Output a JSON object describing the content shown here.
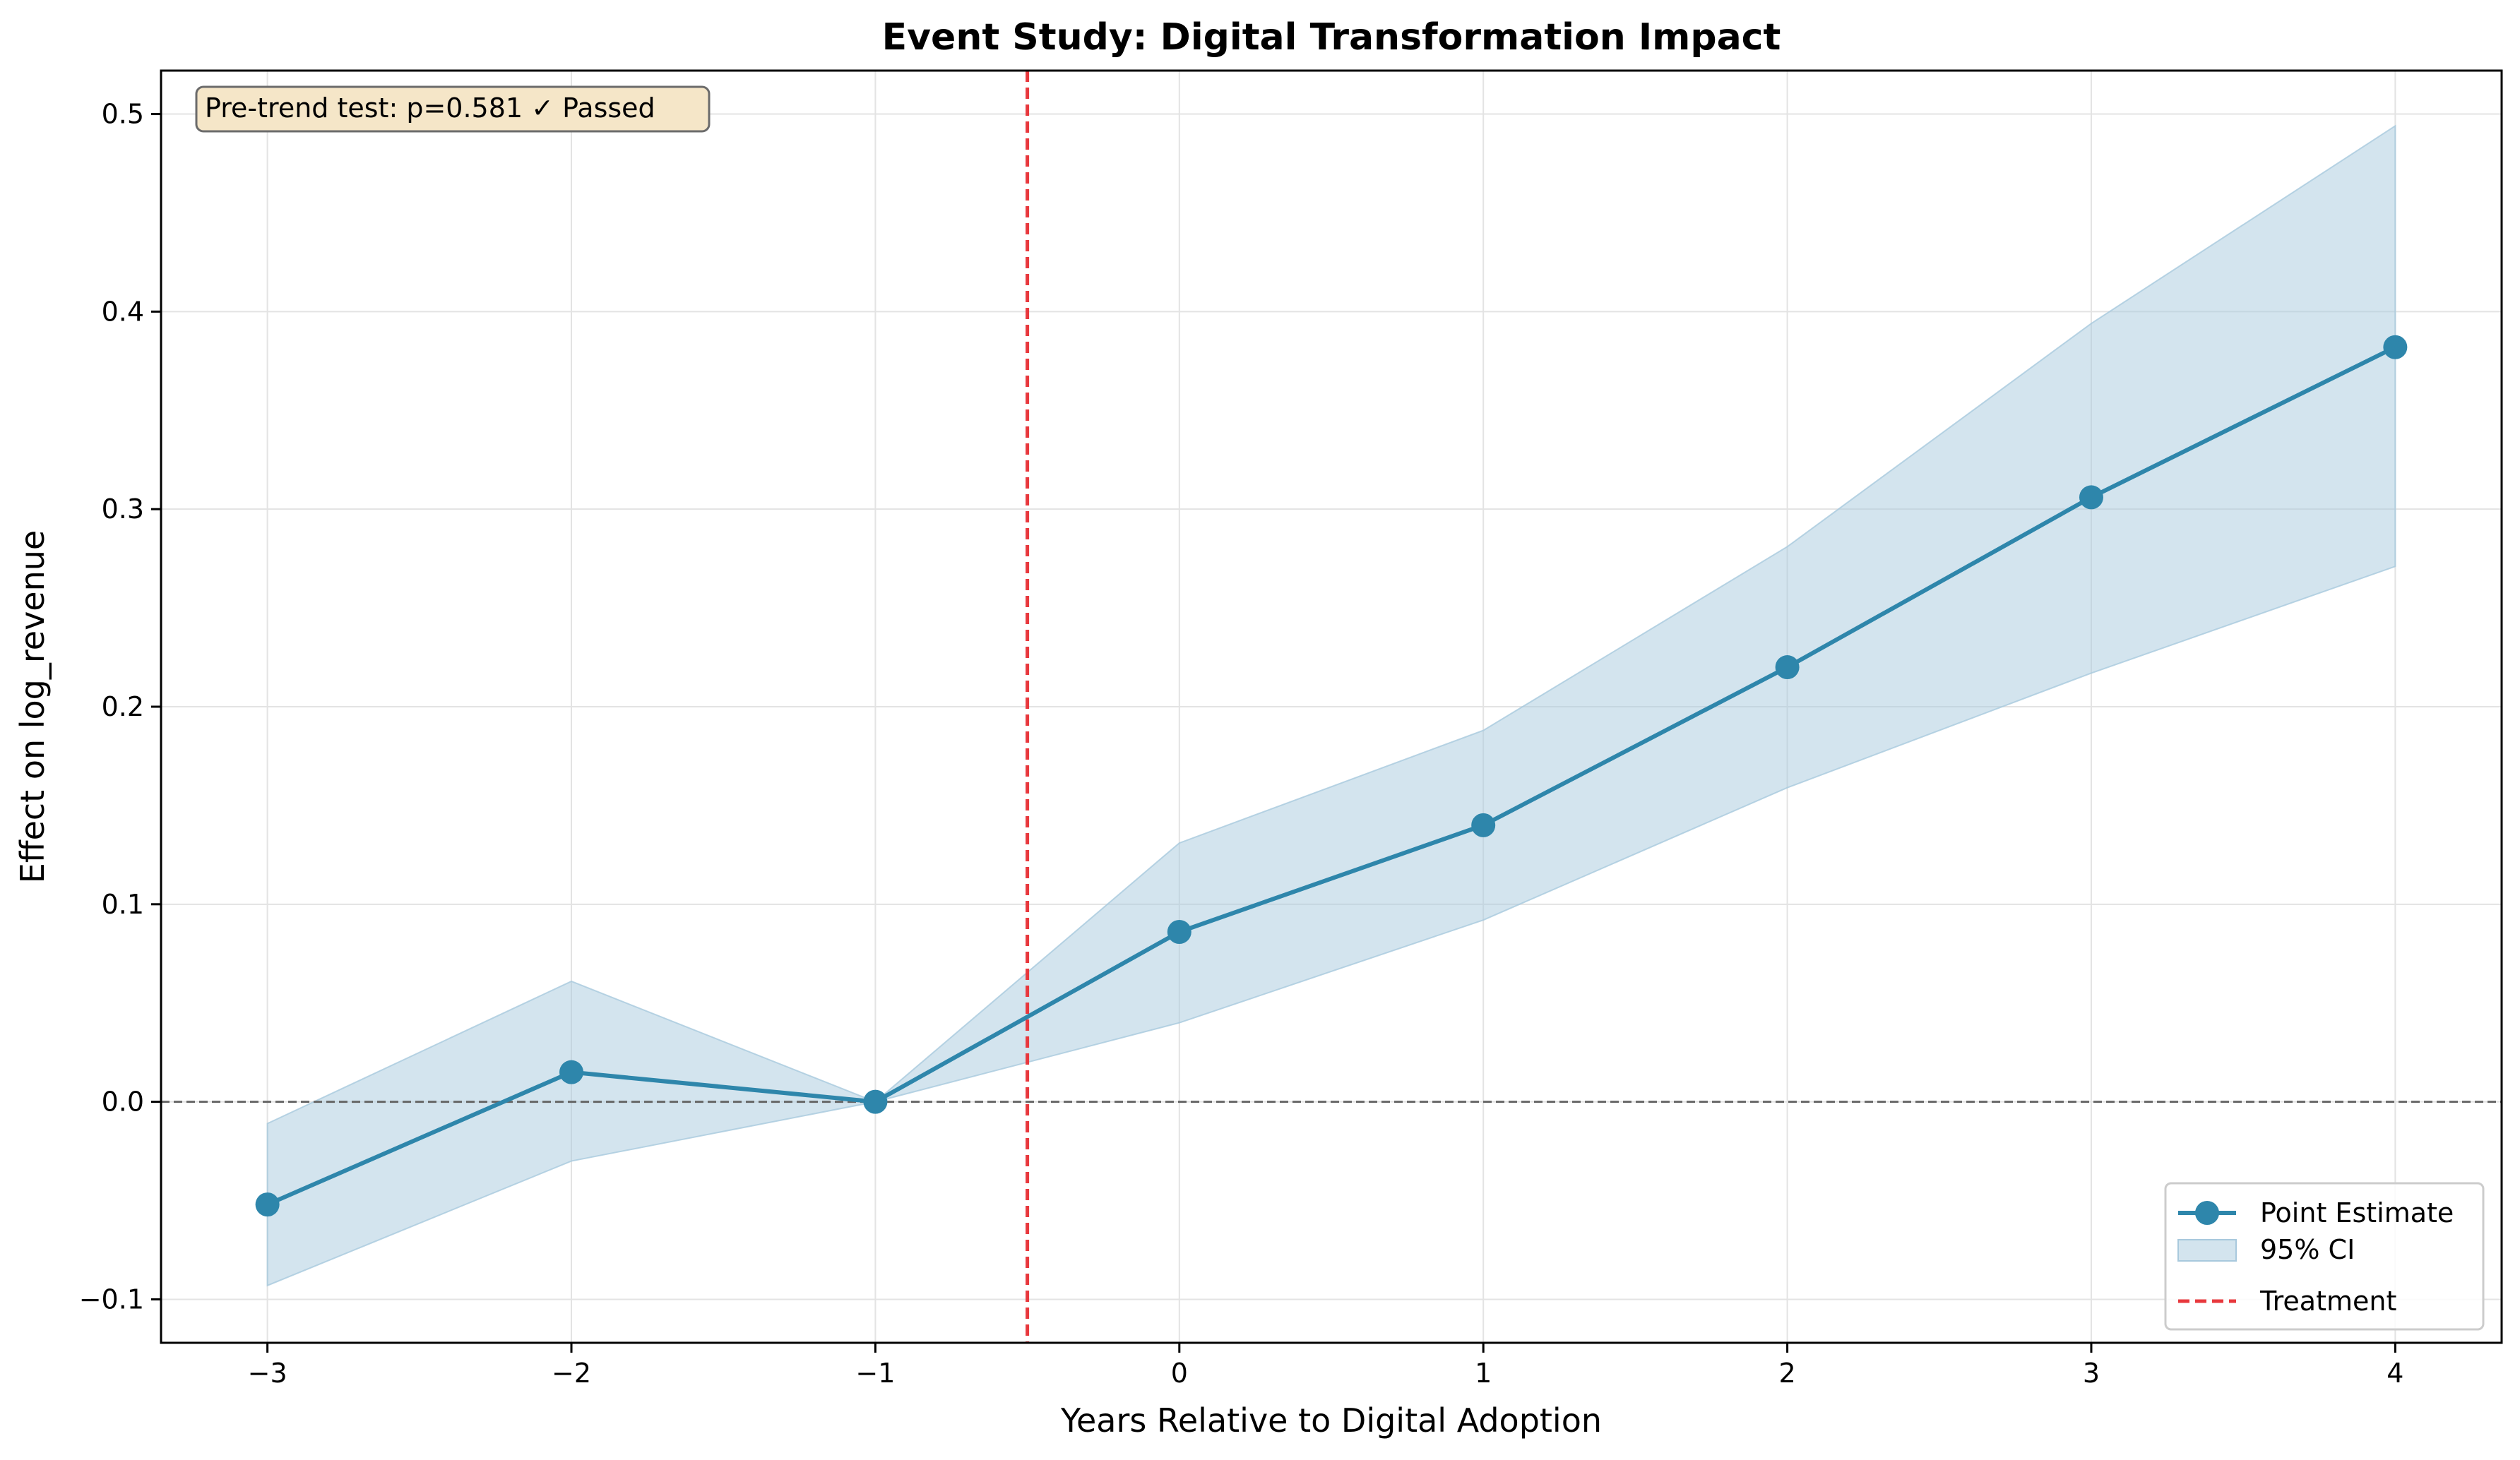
{
  "chart_data": {
    "type": "line",
    "title": "Event Study: Digital Transformation Impact",
    "xlabel": "Years Relative to Digital Adoption",
    "ylabel": "Effect on log_revenue",
    "x": [
      -3,
      -2,
      -1,
      0,
      1,
      2,
      3,
      4
    ],
    "x_ticks": [
      -3,
      -2,
      -1,
      0,
      1,
      2,
      3,
      4
    ],
    "x_tick_labels": [
      "−3",
      "−2",
      "−1",
      "0",
      "1",
      "2",
      "3",
      "4"
    ],
    "y_ticks": [
      -0.1,
      0.0,
      0.1,
      0.2,
      0.3,
      0.4,
      0.5
    ],
    "y_tick_labels": [
      "−0.1",
      "0.0",
      "0.1",
      "0.2",
      "0.3",
      "0.4",
      "0.5"
    ],
    "xlim": [
      -3.35,
      4.35
    ],
    "ylim": [
      -0.122,
      0.522
    ],
    "grid": true,
    "series": [
      {
        "name": "Point Estimate",
        "kind": "line-marker",
        "color": "#2e86ab",
        "values": [
          -0.052,
          0.015,
          0.0,
          0.086,
          0.14,
          0.22,
          0.306,
          0.382
        ]
      },
      {
        "name": "95% CI",
        "kind": "band",
        "color": "#a8c9dd",
        "lower": [
          -0.093,
          -0.03,
          0.0,
          0.04,
          0.092,
          0.159,
          0.217,
          0.271
        ],
        "upper": [
          -0.011,
          0.061,
          0.0,
          0.131,
          0.188,
          0.281,
          0.394,
          0.494
        ]
      }
    ],
    "reference_lines": [
      {
        "name": "Treatment",
        "orientation": "vertical",
        "x": -0.5,
        "color": "#e8383d",
        "style": "dashed"
      },
      {
        "orientation": "horizontal",
        "y": 0.0,
        "color": "#666666",
        "style": "dashed"
      }
    ],
    "legend": {
      "position": "bottom-right",
      "entries": [
        "Point Estimate",
        "95% CI",
        "Treatment"
      ]
    },
    "annotation": {
      "text": "Pre-trend test: p=0.581 ✓ Passed",
      "position": "top-left",
      "background": "#f5e6c8"
    }
  }
}
